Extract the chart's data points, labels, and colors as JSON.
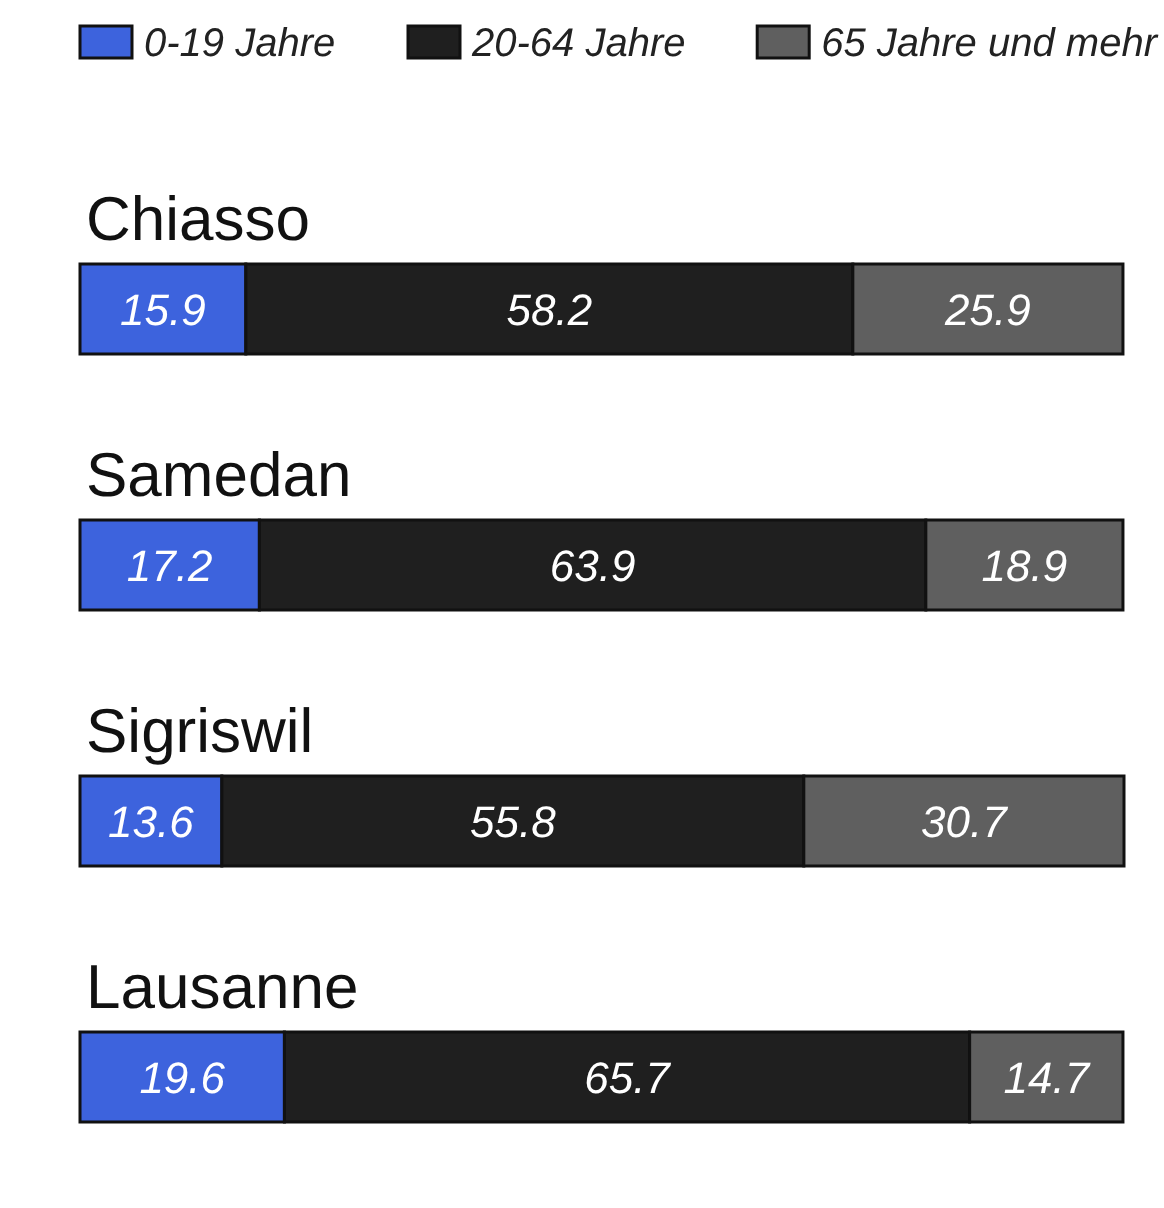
{
  "chart_data": {
    "type": "bar",
    "orientation": "horizontal",
    "stacked": true,
    "data_labels": true,
    "legend": "top",
    "categories": [
      "Chiasso",
      "Samedan",
      "Sigriswil",
      "Lausanne"
    ],
    "series": [
      {
        "name": "0-19 Jahre",
        "color": "#3d63dd",
        "values": [
          15.9,
          17.2,
          13.6,
          19.6
        ]
      },
      {
        "name": "20-64 Jahre",
        "color": "#1f1f1f",
        "values": [
          58.2,
          63.9,
          55.8,
          65.7
        ]
      },
      {
        "name": "65 Jahre und mehr",
        "color": "#5f5f5f",
        "values": [
          25.9,
          18.9,
          30.7,
          14.7
        ]
      }
    ]
  }
}
